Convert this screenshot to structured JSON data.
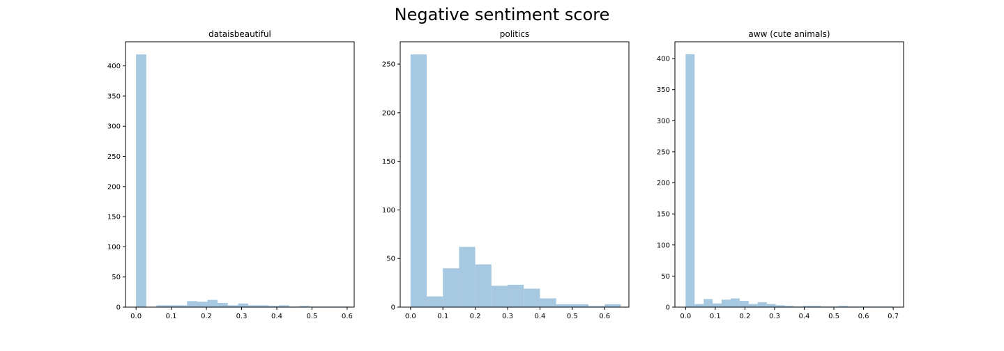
{
  "figure": {
    "title": "Negative sentiment score"
  },
  "colors": {
    "bar": "#a6c8e0",
    "axis": "#000000",
    "background": "#ffffff"
  },
  "chart_data": [
    {
      "type": "bar",
      "title": "dataisbeautiful",
      "xlabel": "",
      "ylabel": "",
      "xlim": [
        -0.03,
        0.62
      ],
      "ylim": [
        0,
        440
      ],
      "xticks": [
        0.0,
        0.1,
        0.2,
        0.3,
        0.4,
        0.5,
        0.6
      ],
      "yticks": [
        0,
        50,
        100,
        150,
        200,
        250,
        300,
        350,
        400
      ],
      "grid": false,
      "bin_edges": [
        0.0,
        0.029,
        0.058,
        0.087,
        0.116,
        0.145,
        0.174,
        0.203,
        0.232,
        0.261,
        0.29,
        0.319,
        0.348,
        0.377,
        0.406,
        0.435,
        0.464,
        0.493,
        0.522,
        0.551,
        0.58,
        0.609
      ],
      "values": [
        419,
        0,
        3,
        3,
        3,
        10,
        9,
        12,
        7,
        3,
        6,
        3,
        3,
        2,
        3,
        1,
        2,
        1,
        1,
        1,
        1
      ]
    },
    {
      "type": "bar",
      "title": "politics",
      "xlabel": "",
      "ylabel": "",
      "xlim": [
        -0.032,
        0.675
      ],
      "ylim": [
        0,
        273
      ],
      "xticks": [
        0.0,
        0.1,
        0.2,
        0.3,
        0.4,
        0.5,
        0.6
      ],
      "yticks": [
        0,
        50,
        100,
        150,
        200,
        250
      ],
      "grid": false,
      "bin_edges": [
        0.0,
        0.05,
        0.1,
        0.15,
        0.2,
        0.25,
        0.3,
        0.35,
        0.4,
        0.45,
        0.5,
        0.55,
        0.6,
        0.65
      ],
      "values": [
        260,
        11,
        40,
        62,
        44,
        22,
        23,
        19,
        9,
        3,
        3,
        1,
        3
      ]
    },
    {
      "type": "bar",
      "title": "aww (cute animals)",
      "xlabel": "",
      "ylabel": "",
      "xlim": [
        -0.036,
        0.735
      ],
      "ylim": [
        0,
        427
      ],
      "xticks": [
        0.0,
        0.1,
        0.2,
        0.3,
        0.4,
        0.5,
        0.6,
        0.7
      ],
      "yticks": [
        0,
        50,
        100,
        150,
        200,
        250,
        300,
        350,
        400
      ],
      "grid": false,
      "bin_edges": [
        0.0,
        0.0304,
        0.0608,
        0.0912,
        0.1216,
        0.152,
        0.1824,
        0.2128,
        0.2432,
        0.2736,
        0.304,
        0.3344,
        0.3648,
        0.3952,
        0.4256,
        0.456,
        0.4864,
        0.5168,
        0.5472,
        0.5776,
        0.608,
        0.6384,
        0.6688,
        0.6992
      ],
      "values": [
        407,
        5,
        13,
        6,
        12,
        14,
        10,
        5,
        8,
        5,
        3,
        2,
        1,
        2,
        2,
        1,
        1,
        2,
        1,
        1,
        1,
        1,
        1
      ]
    }
  ]
}
